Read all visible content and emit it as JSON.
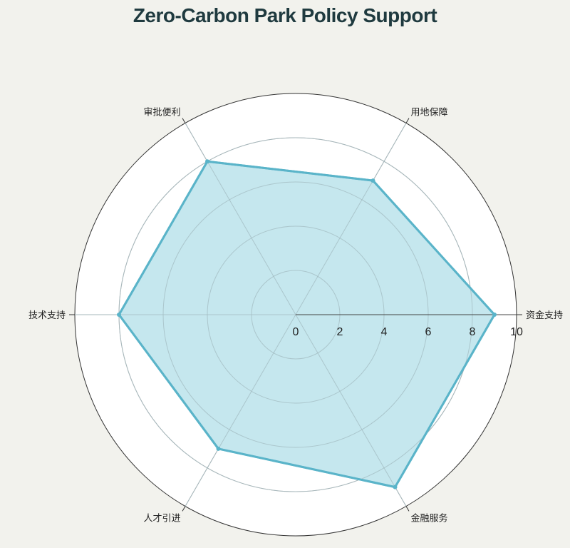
{
  "chart_data": {
    "type": "radar",
    "title": "Zero-Carbon Park Policy Support",
    "axes": [
      "资金支持",
      "用地保障",
      "审批便利",
      "技术支持",
      "人才引进",
      "金融服务"
    ],
    "series": [
      {
        "values": [
          9,
          7,
          8,
          8,
          7,
          9
        ]
      }
    ],
    "range": [
      0,
      10
    ],
    "ticks": [
      "0",
      "2",
      "4",
      "6",
      "8",
      "10"
    ],
    "colors": {
      "line": "#5ab4c9",
      "fill": "#c5e7ee",
      "background": "#f2f2ed",
      "plot": "#ffffff"
    }
  }
}
